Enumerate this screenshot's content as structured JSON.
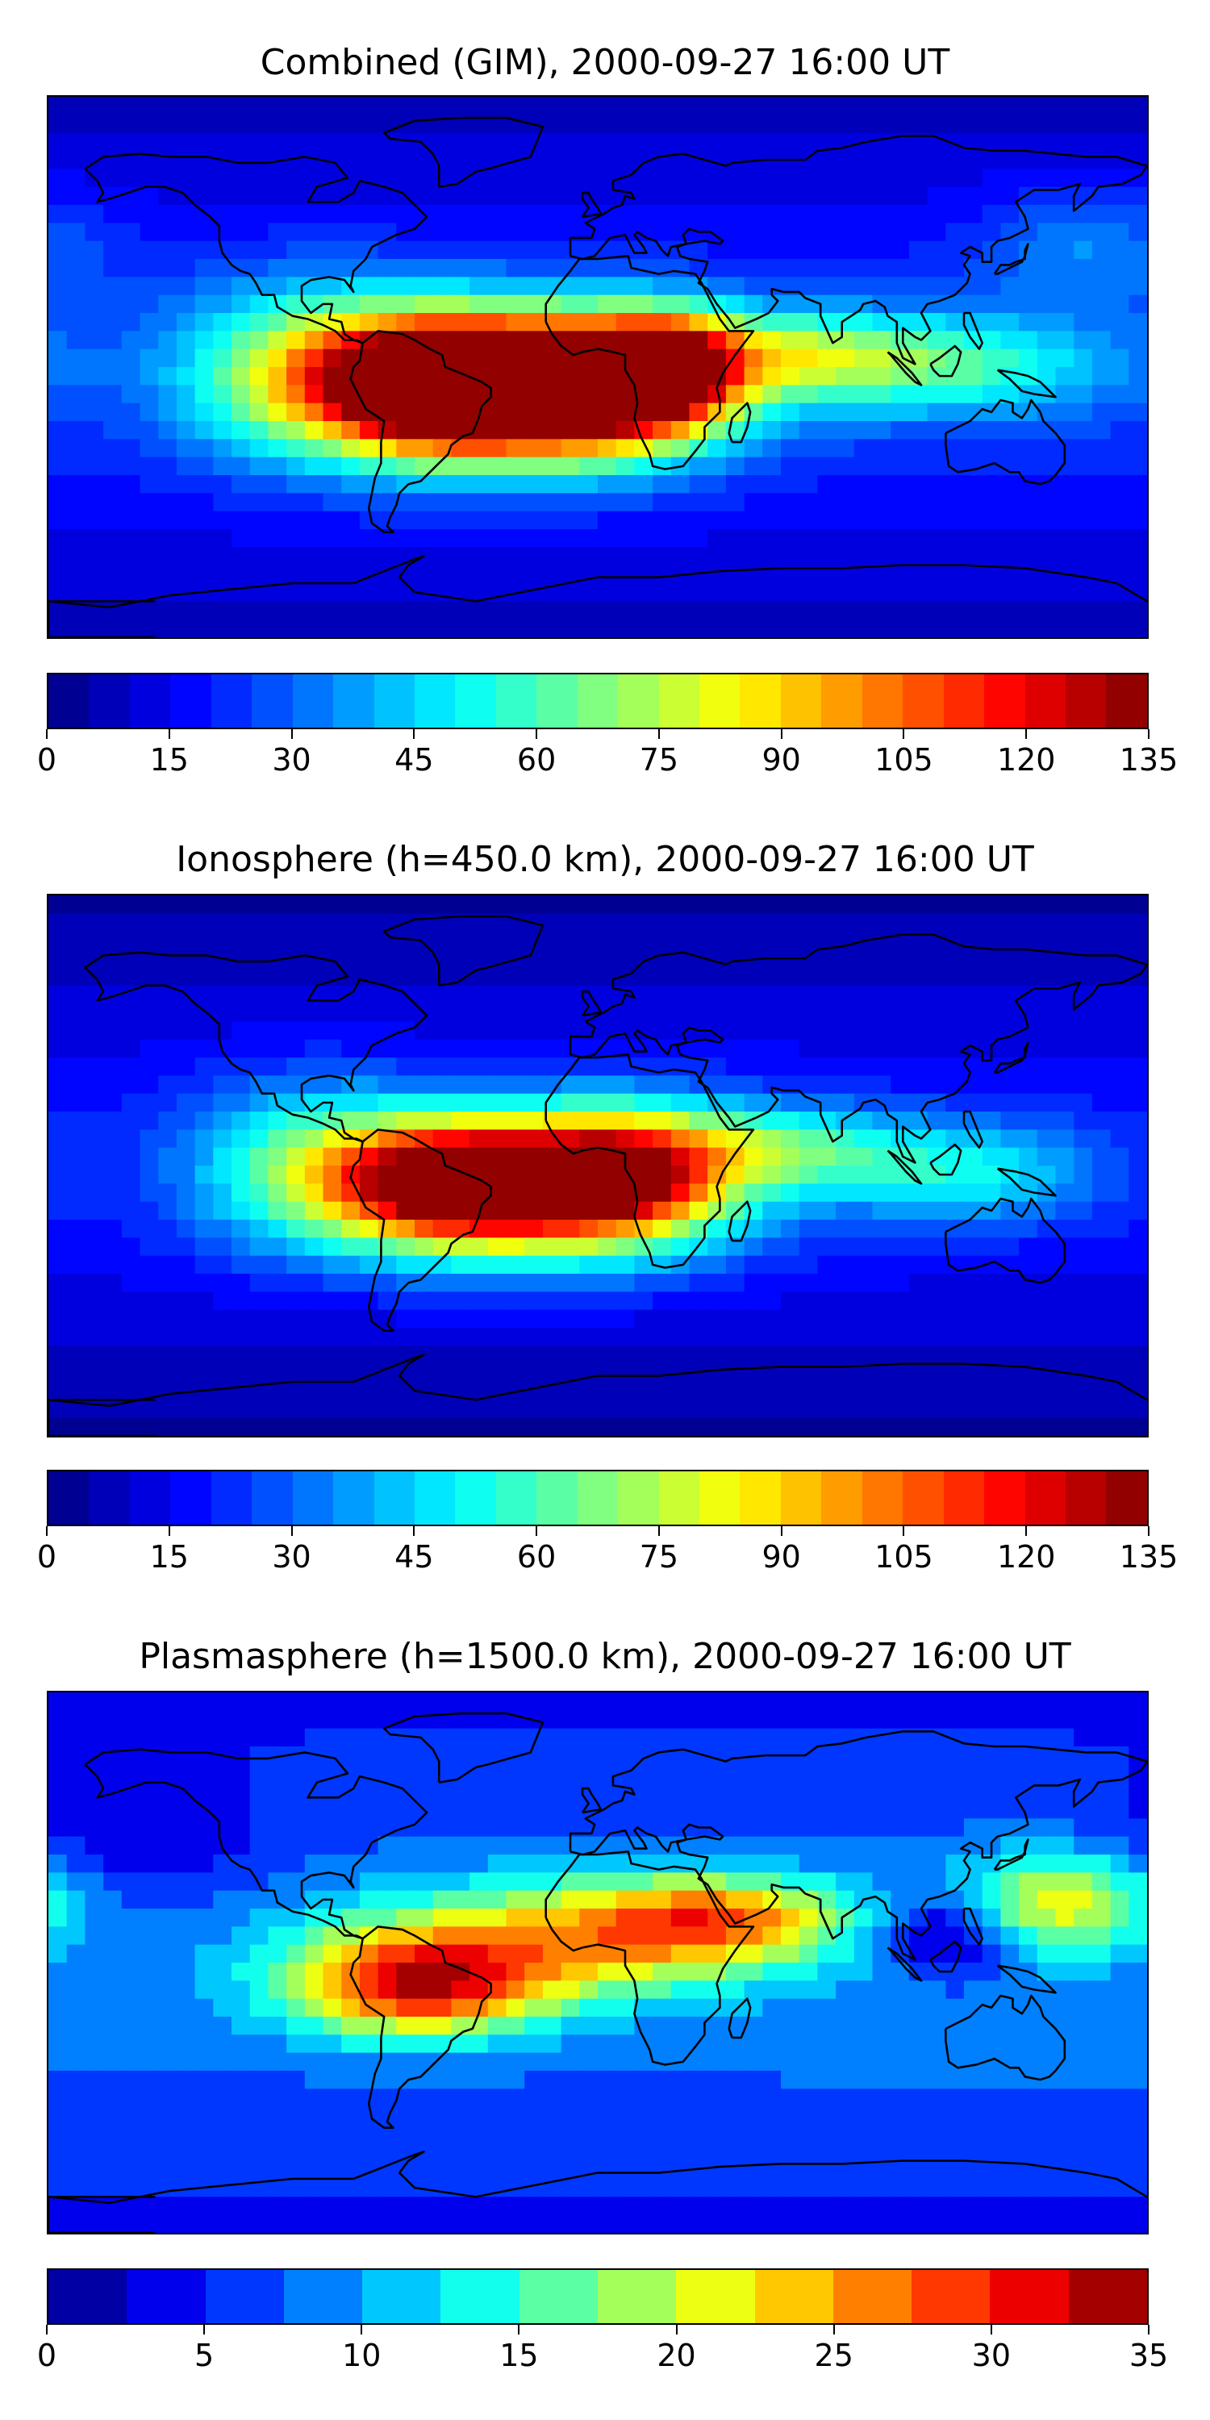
{
  "panels": [
    {
      "title": "Combined (GIM), 2000-09-27 16:00 UT",
      "colorbar": {
        "min": 0,
        "max": 135,
        "step": 5,
        "tick_labels": [
          "0",
          "15",
          "30",
          "45",
          "60",
          "75",
          "90",
          "105",
          "120",
          "135"
        ]
      },
      "field": {
        "background_level": 18,
        "blobs": [
          {
            "lon": -48,
            "lat": -5,
            "value": 118,
            "sx": 28,
            "sy": 14
          },
          {
            "lon": -28,
            "lat": -8,
            "value": 92,
            "sx": 45,
            "sy": 18
          },
          {
            "lon": 5,
            "lat": -5,
            "value": 88,
            "sx": 22,
            "sy": 14
          },
          {
            "lon": 25,
            "lat": 0,
            "value": 70,
            "sx": 15,
            "sy": 12
          },
          {
            "lon": 65,
            "lat": 4,
            "value": 48,
            "sx": 30,
            "sy": 10
          },
          {
            "lon": 120,
            "lat": 0,
            "value": 38,
            "sx": 35,
            "sy": 12
          },
          {
            "lon": -95,
            "lat": 0,
            "value": 45,
            "sx": 30,
            "sy": 20
          },
          {
            "lon": 160,
            "lat": 40,
            "value": 22,
            "sx": 25,
            "sy": 15
          }
        ]
      }
    },
    {
      "title": "Ionosphere  (h=450.0 km), 2000-09-27 16:00 UT",
      "colorbar": {
        "min": 0,
        "max": 135,
        "step": 5,
        "tick_labels": [
          "0",
          "15",
          "30",
          "45",
          "60",
          "75",
          "90",
          "105",
          "120",
          "135"
        ]
      },
      "field": {
        "background_level": 14,
        "blobs": [
          {
            "lon": -45,
            "lat": -5,
            "value": 95,
            "sx": 28,
            "sy": 13
          },
          {
            "lon": -20,
            "lat": -8,
            "value": 78,
            "sx": 45,
            "sy": 18
          },
          {
            "lon": 10,
            "lat": -2,
            "value": 74,
            "sx": 22,
            "sy": 14
          },
          {
            "lon": 60,
            "lat": 6,
            "value": 40,
            "sx": 28,
            "sy": 10
          },
          {
            "lon": 120,
            "lat": -2,
            "value": 36,
            "sx": 30,
            "sy": 12
          },
          {
            "lon": -95,
            "lat": 0,
            "value": 38,
            "sx": 28,
            "sy": 20
          }
        ]
      }
    },
    {
      "title": "Plasmasphere (h=1500.0 km), 2000-09-27 16:00 UT",
      "colorbar": {
        "min": 0,
        "max": 35,
        "step": 2.5,
        "tick_labels": [
          "0",
          "5",
          "10",
          "15",
          "20",
          "25",
          "30",
          "35"
        ]
      },
      "field": {
        "background_level": 7,
        "blobs": [
          {
            "lon": -60,
            "lat": -8,
            "value": 23,
            "sx": 30,
            "sy": 12
          },
          {
            "lon": -10,
            "lat": 8,
            "value": 16,
            "sx": 50,
            "sy": 14
          },
          {
            "lon": 40,
            "lat": 15,
            "value": 16,
            "sx": 30,
            "sy": 10
          },
          {
            "lon": 150,
            "lat": 20,
            "value": 16,
            "sx": 25,
            "sy": 12
          },
          {
            "lon": 115,
            "lat": 10,
            "value": -8,
            "sx": 15,
            "sy": 10
          },
          {
            "lon": 120,
            "lat": -30,
            "value": 4,
            "sx": 40,
            "sy": 10
          },
          {
            "lon": -150,
            "lat": 40,
            "value": -2,
            "sx": 30,
            "sy": 15
          }
        ]
      }
    }
  ]
}
